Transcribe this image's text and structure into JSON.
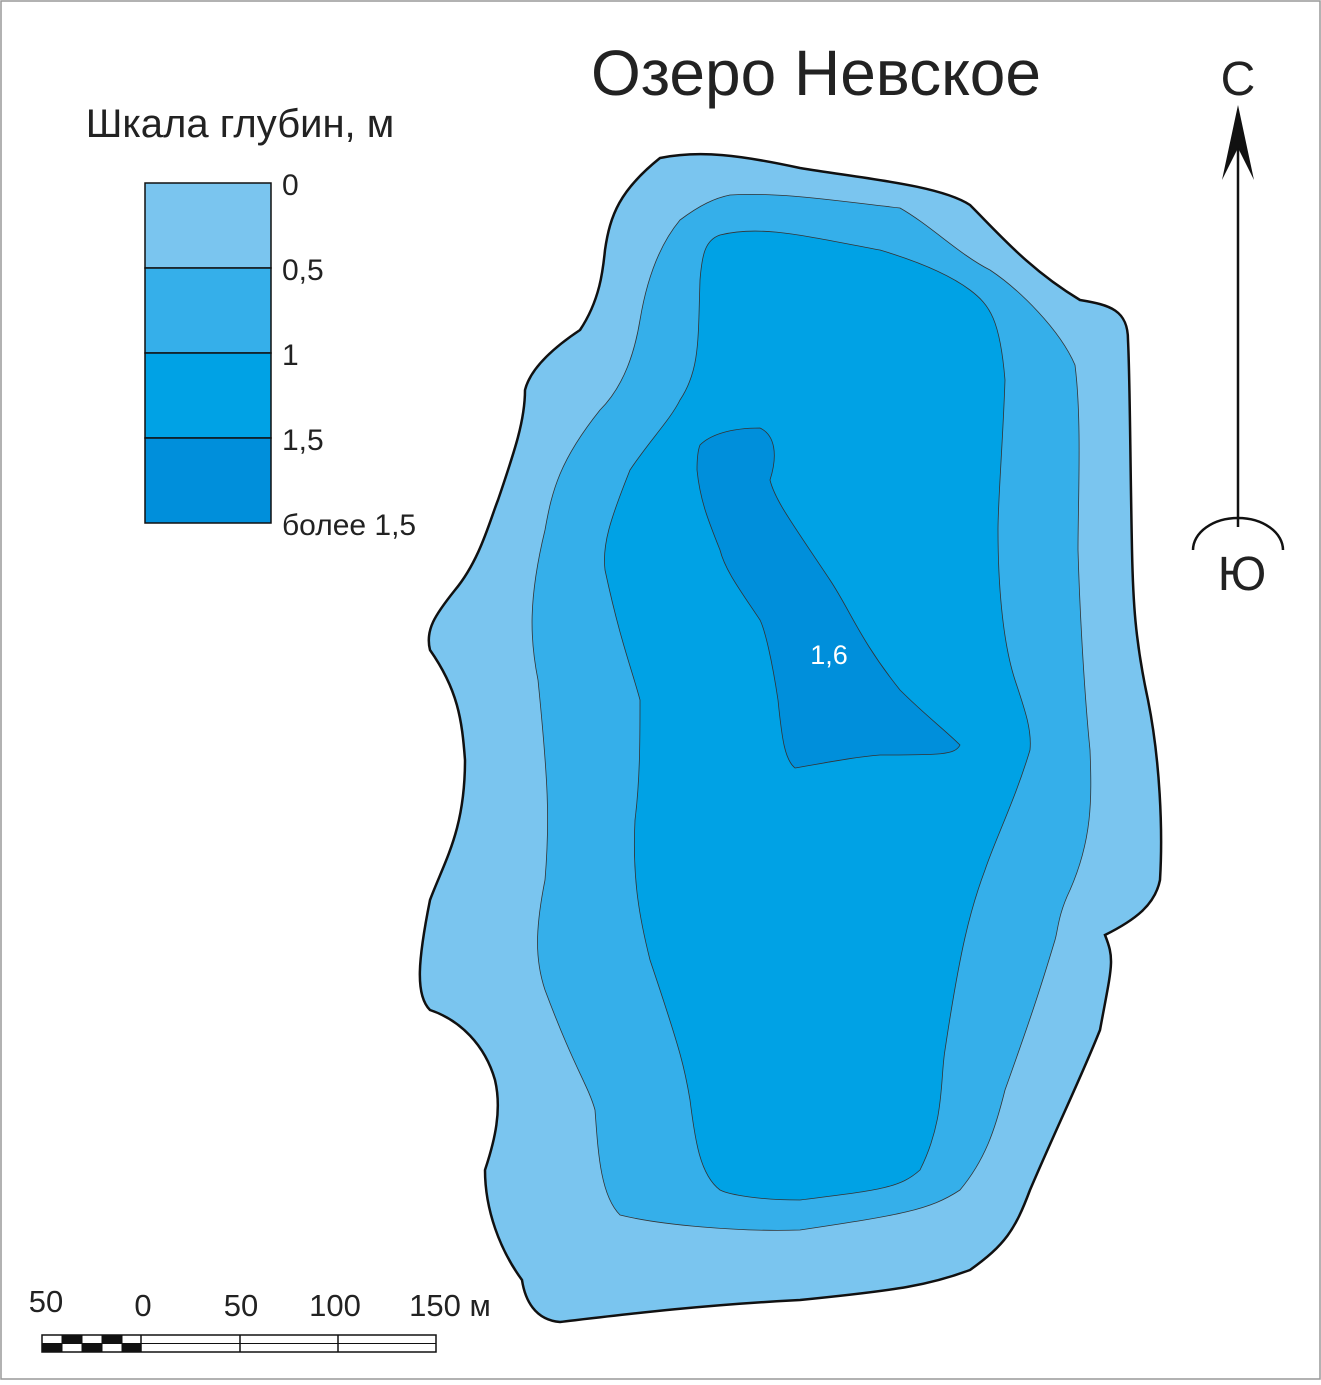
{
  "title": "Озеро Невское",
  "legend": {
    "title": "Шкала глубин, м",
    "labels": [
      "0",
      "0,5",
      "1",
      "1,5",
      "более 1,5"
    ],
    "colors": [
      "#7ac5ef",
      "#35afea",
      "#00a2e5",
      "#008fdb"
    ]
  },
  "depth_label": "1,6",
  "compass": {
    "north": "С",
    "south": "Ю"
  },
  "scale_bar": {
    "labels": [
      "50",
      "0",
      "50",
      "100",
      "150 м"
    ]
  }
}
